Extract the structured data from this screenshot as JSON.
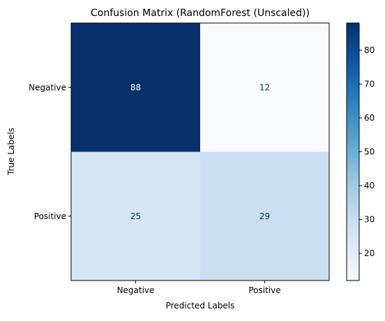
{
  "chart_data": {
    "type": "heatmap",
    "title": "Confusion Matrix (RandomForest (Unscaled))",
    "xlabel": "Predicted Labels",
    "ylabel": "True Labels",
    "x_categories": [
      "Negative",
      "Positive"
    ],
    "y_categories": [
      "Negative",
      "Positive"
    ],
    "values": [
      [
        88,
        12
      ],
      [
        25,
        29
      ]
    ],
    "colormap": "Blues",
    "colorbar": {
      "range": [
        12,
        88
      ],
      "ticks": [
        "20",
        "30",
        "40",
        "50",
        "60",
        "70",
        "80"
      ]
    },
    "text_colors": {
      "on_dark": "#ffffff",
      "on_light": "#08306b"
    }
  }
}
